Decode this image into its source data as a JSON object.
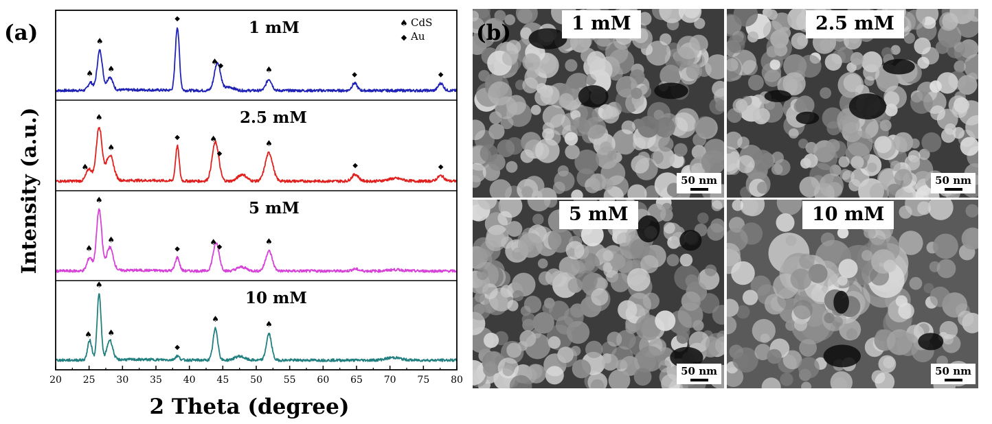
{
  "panel_a": {
    "letter": "(a)"
  },
  "panel_b": {
    "letter": "(b)"
  },
  "chart_data": {
    "type": "line",
    "xlabel": "2 Theta (degree)",
    "ylabel": "Intensity (a.u.)",
    "xlim": [
      20,
      80
    ],
    "xticks": [
      20,
      25,
      30,
      35,
      40,
      45,
      50,
      55,
      60,
      65,
      70,
      75,
      80
    ],
    "grid": false,
    "legend": {
      "placement": "top-right",
      "entries": [
        {
          "marker": "spade",
          "label": "CdS"
        },
        {
          "marker": "diamond",
          "label": "Au"
        }
      ]
    },
    "series": [
      {
        "name": "1 mM",
        "color": "#1f22b4",
        "peaks": [
          [
            25.2,
            0.12,
            0.5
          ],
          [
            26.6,
            0.6,
            0.55
          ],
          [
            28.1,
            0.2,
            0.6
          ],
          [
            38.2,
            0.95,
            0.42
          ],
          [
            44.2,
            0.42,
            0.65
          ],
          [
            46.0,
            0.05,
            1.0
          ],
          [
            51.9,
            0.17,
            0.6
          ],
          [
            64.7,
            0.11,
            0.55
          ],
          [
            77.6,
            0.11,
            0.55
          ]
        ],
        "markers": [
          [
            25.1,
            "spade"
          ],
          [
            26.6,
            "spade"
          ],
          [
            28.3,
            "spade"
          ],
          [
            38.2,
            "diamond"
          ],
          [
            43.8,
            "spade"
          ],
          [
            44.7,
            "diamond"
          ],
          [
            51.9,
            "spade"
          ],
          [
            64.7,
            "diamond"
          ],
          [
            77.6,
            "diamond"
          ]
        ]
      },
      {
        "name": "2.5 mM",
        "color": "#e0201e",
        "peaks": [
          [
            25.0,
            0.18,
            0.6
          ],
          [
            26.5,
            0.8,
            0.6
          ],
          [
            28.1,
            0.38,
            0.8
          ],
          [
            38.2,
            0.52,
            0.38
          ],
          [
            43.9,
            0.58,
            0.7
          ],
          [
            47.9,
            0.1,
            0.9
          ],
          [
            51.9,
            0.42,
            0.8
          ],
          [
            64.8,
            0.1,
            0.7
          ],
          [
            70.8,
            0.04,
            1.5
          ],
          [
            77.6,
            0.08,
            0.7
          ]
        ],
        "markers": [
          [
            24.4,
            "spade"
          ],
          [
            26.5,
            "spade"
          ],
          [
            28.3,
            "spade"
          ],
          [
            38.2,
            "diamond"
          ],
          [
            43.6,
            "spade"
          ],
          [
            44.5,
            "diamond"
          ],
          [
            51.9,
            "spade"
          ],
          [
            64.8,
            "diamond"
          ],
          [
            77.6,
            "diamond"
          ]
        ]
      },
      {
        "name": "5 mM",
        "color": "#d642d8",
        "peaks": [
          [
            25.1,
            0.2,
            0.55
          ],
          [
            26.5,
            0.92,
            0.55
          ],
          [
            28.1,
            0.35,
            0.7
          ],
          [
            38.2,
            0.2,
            0.45
          ],
          [
            44.0,
            0.42,
            0.65
          ],
          [
            47.8,
            0.06,
            1.0
          ],
          [
            51.9,
            0.3,
            0.7
          ],
          [
            64.8,
            0.03,
            0.7
          ],
          [
            70.8,
            0.02,
            1.5
          ]
        ],
        "markers": [
          [
            25.0,
            "spade"
          ],
          [
            26.5,
            "spade"
          ],
          [
            28.3,
            "spade"
          ],
          [
            38.2,
            "diamond"
          ],
          [
            43.6,
            "spade"
          ],
          [
            44.5,
            "diamond"
          ],
          [
            51.9,
            "spade"
          ]
        ]
      },
      {
        "name": "10 mM",
        "color": "#227f7f",
        "peaks": [
          [
            25.1,
            0.3,
            0.45
          ],
          [
            26.5,
            1.0,
            0.42
          ],
          [
            28.1,
            0.3,
            0.6
          ],
          [
            38.2,
            0.06,
            0.45
          ],
          [
            43.9,
            0.48,
            0.5
          ],
          [
            47.5,
            0.06,
            1.0
          ],
          [
            51.9,
            0.4,
            0.55
          ],
          [
            70.5,
            0.04,
            1.5
          ]
        ],
        "markers": [
          [
            24.9,
            "spade"
          ],
          [
            26.5,
            "spade"
          ],
          [
            28.3,
            "spade"
          ],
          [
            38.2,
            "diamond"
          ],
          [
            43.9,
            "spade"
          ],
          [
            51.9,
            "spade"
          ]
        ]
      }
    ]
  },
  "sem": {
    "images": [
      {
        "label": "1 mM",
        "scale": "50 nm"
      },
      {
        "label": "2.5 mM",
        "scale": "50 nm"
      },
      {
        "label": "5 mM",
        "scale": "50 nm"
      },
      {
        "label": "10 mM",
        "scale": "50 nm"
      }
    ]
  }
}
